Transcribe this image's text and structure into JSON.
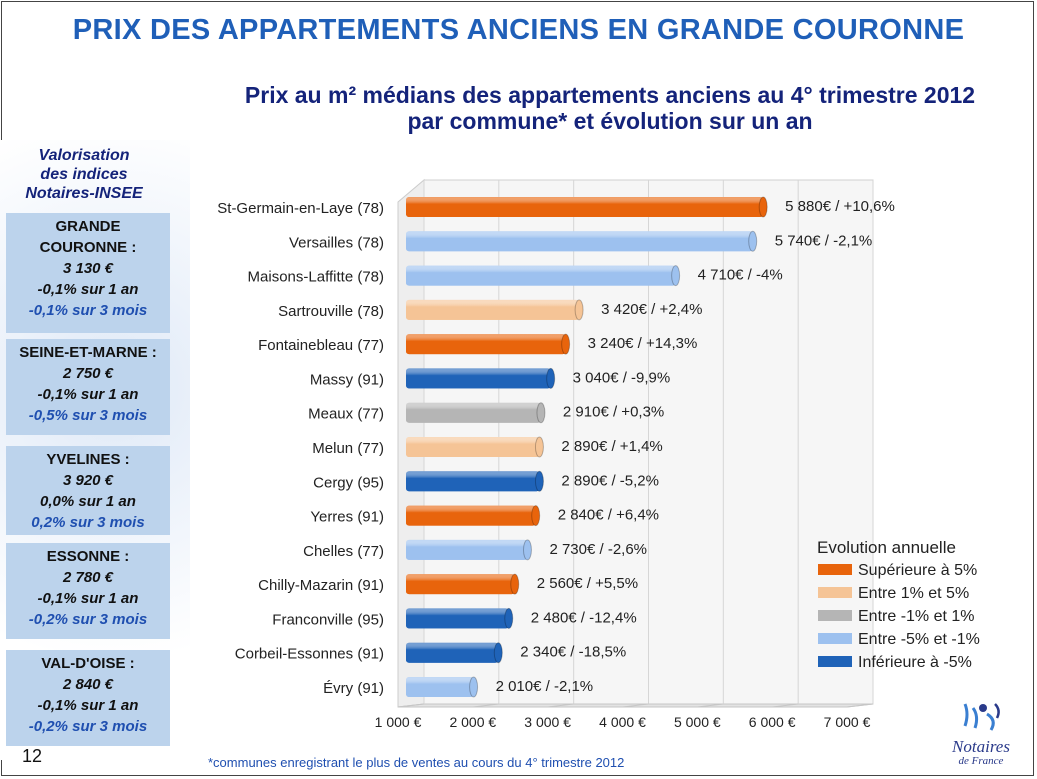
{
  "title": "PRIX DES APPARTEMENTS ANCIENS EN GRANDE COURONNE",
  "subtitle_line1": "Prix au m² médians des appartements anciens au 4° trimestre 2012",
  "subtitle_line2": "par commune* et évolution sur un an",
  "valorisation_title": [
    "Valorisation",
    "des indices",
    "Notaires-INSEE"
  ],
  "cards": [
    {
      "name1": "GRANDE",
      "name2": "COURONNE :",
      "price": "3 130 €",
      "year": "-0,1% sur 1 an",
      "months": "-0,1% sur 3 mois"
    },
    {
      "name1": "SEINE-ET-MARNE :",
      "price": "2 750 €",
      "year": "-0,1% sur 1 an",
      "months": "-0,5% sur 3 mois"
    },
    {
      "name1": "YVELINES :",
      "price": "3 920 €",
      "year": "0,0% sur 1 an",
      "months": "0,2% sur 3 mois"
    },
    {
      "name1": "ESSONNE :",
      "price": "2 780 €",
      "year": "-0,1% sur 1 an",
      "months": "-0,2% sur 3 mois"
    },
    {
      "name1": "VAL-D'OISE :",
      "price": "2 840 €",
      "year": "-0,1% sur 1 an",
      "months": "-0,2% sur 3 mois"
    }
  ],
  "page_number": "12",
  "footnote": "*communes enregistrant le plus de ventes au cours du 4° trimestre 2012",
  "logo": {
    "name": "Notaires",
    "sub": "de France",
    "icon": "notaires-de-france-logo"
  },
  "chart_data": {
    "type": "bar",
    "orientation": "horizontal",
    "categories": [
      "St-Germain-en-Laye (78)",
      "Versailles (78)",
      "Maisons-Laffitte (78)",
      "Sartrouville (78)",
      "Fontainebleau (77)",
      "Massy (91)",
      "Meaux (77)",
      "Melun (77)",
      "Cergy (95)",
      "Yerres (91)",
      "Chelles (77)",
      "Chilly-Mazarin (91)",
      "Franconville (95)",
      "Corbeil-Essonnes (91)",
      "Évry (91)"
    ],
    "values": [
      5880,
      5740,
      4710,
      3420,
      3240,
      3040,
      2910,
      2890,
      2890,
      2840,
      2730,
      2560,
      2480,
      2340,
      2010
    ],
    "labels": [
      "5 880€ / +10,6%",
      "5 740€ / -2,1%",
      "4 710€ / -4%",
      "3 420€ / +2,4%",
      "3 240€ / +14,3%",
      "3 040€ / -9,9%",
      "2 910€ / +0,3%",
      "2 890€ / +1,4%",
      "2 890€ / -5,2%",
      "2 840€ / +6,4%",
      "2 730€ / -2,6%",
      "2 560€ / +5,5%",
      "2 480€ / -12,4%",
      "2 340€ / -18,5%",
      "2 010€ / -2,1%"
    ],
    "evolution_class": [
      0,
      3,
      3,
      1,
      0,
      4,
      2,
      1,
      4,
      0,
      3,
      0,
      4,
      4,
      3
    ],
    "xlim": [
      1000,
      7000
    ],
    "xticks": [
      1000,
      2000,
      3000,
      4000,
      5000,
      6000,
      7000
    ],
    "xtick_labels": [
      "1 000 €",
      "2 000 €",
      "3 000 €",
      "4 000 €",
      "5 000 €",
      "6 000 €",
      "7 000 €"
    ],
    "legend": {
      "title": "Evolution annuelle",
      "placement": "bottom-right",
      "entries": [
        "Supérieure à 5%",
        "Entre 1% et 5%",
        "Entre -1% et 1%",
        "Entre -5% et -1%",
        "Inférieure à -5%"
      ],
      "colors": [
        "#e8640c",
        "#f5c496",
        "#b5b5b5",
        "#9dc1ef",
        "#1f63b8"
      ]
    }
  }
}
